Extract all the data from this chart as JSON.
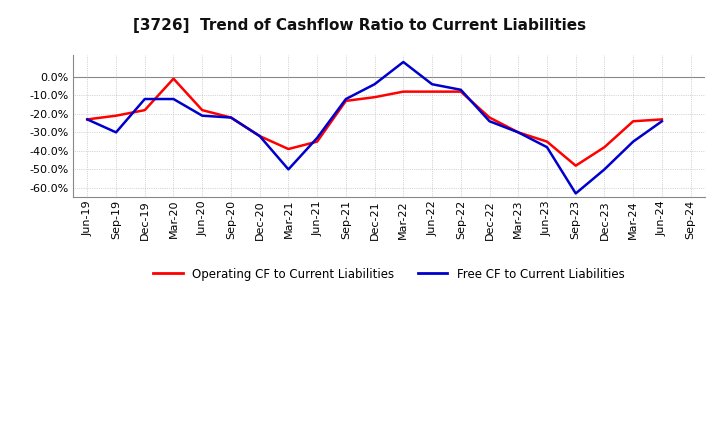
{
  "title": "[3726]  Trend of Cashflow Ratio to Current Liabilities",
  "x_labels": [
    "Jun-19",
    "Sep-19",
    "Dec-19",
    "Mar-20",
    "Jun-20",
    "Sep-20",
    "Dec-20",
    "Mar-21",
    "Jun-21",
    "Sep-21",
    "Dec-21",
    "Mar-22",
    "Jun-22",
    "Sep-22",
    "Dec-22",
    "Mar-23",
    "Jun-23",
    "Sep-23",
    "Dec-23",
    "Mar-24",
    "Jun-24",
    "Sep-24"
  ],
  "operating_cf": [
    -0.23,
    -0.21,
    -0.18,
    -0.01,
    -0.18,
    -0.22,
    -0.32,
    -0.39,
    -0.35,
    -0.13,
    -0.11,
    -0.08,
    -0.08,
    -0.08,
    -0.22,
    -0.3,
    -0.35,
    -0.48,
    -0.38,
    -0.24,
    -0.23,
    null
  ],
  "free_cf": [
    -0.23,
    -0.3,
    -0.12,
    -0.12,
    -0.21,
    -0.22,
    -0.32,
    -0.5,
    -0.33,
    -0.12,
    -0.04,
    0.08,
    -0.04,
    -0.07,
    -0.24,
    -0.3,
    -0.38,
    -0.63,
    -0.5,
    -0.35,
    -0.24,
    null
  ],
  "operating_color": "#ff0000",
  "free_color": "#0000cc",
  "ylim": [
    -0.65,
    0.12
  ],
  "yticks": [
    0.0,
    -0.1,
    -0.2,
    -0.3,
    -0.4,
    -0.5,
    -0.6
  ],
  "background_color": "#ffffff",
  "plot_bg_color": "#ffffff",
  "legend_op": "Operating CF to Current Liabilities",
  "legend_free": "Free CF to Current Liabilities",
  "title_fontsize": 11,
  "tick_fontsize": 8
}
